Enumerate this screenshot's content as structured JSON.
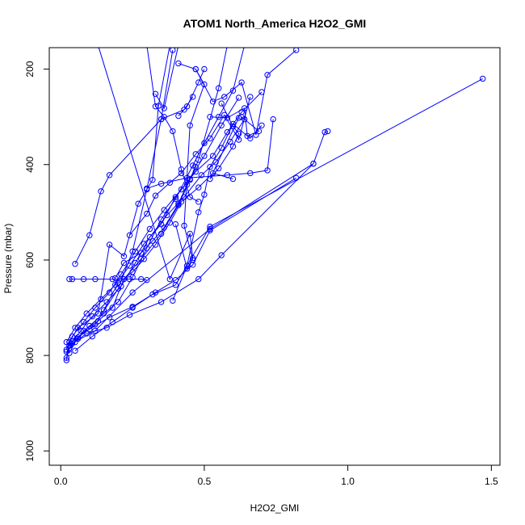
{
  "chart_data": {
    "type": "line",
    "title": "ATOM1 North_America H2O2_GMI",
    "xlabel": "H2O2_GMI",
    "ylabel": "Pressure (mbar)",
    "xlim": [
      -0.04,
      1.53
    ],
    "ylim": [
      1030,
      155
    ],
    "y_reversed": true,
    "grid": false,
    "legend": "none",
    "color": "#0000ff",
    "x_ticks": [
      0.0,
      0.5,
      1.0,
      1.5
    ],
    "x_tick_labels": [
      "0.0",
      "0.5",
      "1.0",
      "1.5"
    ],
    "y_ticks": [
      200,
      400,
      600,
      800,
      1000
    ],
    "y_tick_labels": [
      "200",
      "400",
      "600",
      "800",
      "1000"
    ],
    "series": [
      {
        "values": [
          [
            0.02,
            810
          ],
          [
            0.03,
            772
          ],
          [
            0.06,
            742
          ],
          [
            0.13,
            712
          ],
          [
            0.17,
            568
          ],
          [
            0.22,
            592
          ],
          [
            0.27,
            482
          ],
          [
            0.32,
            432
          ],
          [
            0.34,
            277
          ],
          [
            0.38,
            150
          ]
        ]
      },
      {
        "values": [
          [
            0.02,
            805
          ],
          [
            0.03,
            785
          ],
          [
            0.06,
            762
          ],
          [
            0.12,
            735
          ],
          [
            0.2,
            660
          ],
          [
            0.25,
            582
          ],
          [
            0.3,
            452
          ],
          [
            0.35,
            305
          ],
          [
            0.39,
            160
          ]
        ]
      },
      {
        "values": [
          [
            0.03,
            795
          ],
          [
            0.05,
            772
          ],
          [
            0.08,
            748
          ],
          [
            0.13,
            728
          ],
          [
            0.18,
            700
          ],
          [
            0.22,
            640
          ],
          [
            0.28,
            598
          ],
          [
            0.35,
            545
          ],
          [
            0.41,
            485
          ],
          [
            0.45,
            432
          ],
          [
            0.48,
            390
          ],
          [
            0.55,
            240
          ],
          [
            0.58,
            150
          ]
        ]
      },
      {
        "values": [
          [
            0.02,
            792
          ],
          [
            0.06,
            765
          ],
          [
            0.1,
            738
          ],
          [
            0.15,
            712
          ],
          [
            0.2,
            688
          ],
          [
            0.25,
            636
          ],
          [
            0.3,
            575
          ],
          [
            0.35,
            515
          ],
          [
            0.4,
            472
          ],
          [
            0.46,
            402
          ],
          [
            0.5,
            355
          ],
          [
            0.55,
            300
          ],
          [
            0.6,
            245
          ],
          [
            0.64,
            150
          ]
        ]
      },
      {
        "values": [
          [
            0.02,
            788
          ],
          [
            0.04,
            760
          ],
          [
            0.08,
            730
          ],
          [
            0.12,
            700
          ],
          [
            0.17,
            668
          ],
          [
            0.21,
            630
          ],
          [
            0.26,
            582
          ],
          [
            0.31,
            535
          ],
          [
            0.36,
            495
          ],
          [
            0.42,
            452
          ],
          [
            0.47,
            415
          ],
          [
            0.53,
            382
          ],
          [
            0.58,
            332
          ],
          [
            0.63,
            290
          ],
          [
            0.7,
            248
          ]
        ]
      },
      {
        "values": [
          [
            0.03,
            778
          ],
          [
            0.07,
            748
          ],
          [
            0.11,
            718
          ],
          [
            0.16,
            688
          ],
          [
            0.21,
            655
          ],
          [
            0.26,
            606
          ],
          [
            0.31,
            552
          ],
          [
            0.37,
            506
          ],
          [
            0.43,
            468
          ],
          [
            0.49,
            422
          ],
          [
            0.54,
            395
          ],
          [
            0.59,
            352
          ],
          [
            0.64,
            305
          ]
        ]
      },
      {
        "values": [
          [
            0.02,
            772
          ],
          [
            0.05,
            742
          ],
          [
            0.09,
            712
          ],
          [
            0.14,
            682
          ],
          [
            0.19,
            652
          ],
          [
            0.24,
            612
          ],
          [
            0.29,
            566
          ],
          [
            0.35,
            525
          ],
          [
            0.4,
            468
          ],
          [
            0.45,
            430
          ],
          [
            0.5,
            382
          ],
          [
            0.56,
            318
          ],
          [
            0.62,
            260
          ]
        ]
      },
      {
        "values": [
          [
            0.05,
            790
          ],
          [
            0.11,
            760
          ],
          [
            0.18,
            730
          ],
          [
            0.25,
            700
          ],
          [
            0.33,
            668
          ],
          [
            0.4,
            642
          ],
          [
            0.46,
            610
          ],
          [
            0.52,
            538
          ],
          [
            0.82,
            428
          ]
        ]
      },
      {
        "values": [
          [
            0.03,
            780
          ],
          [
            0.09,
            754
          ],
          [
            0.16,
            742
          ],
          [
            0.24,
            715
          ],
          [
            0.35,
            688
          ],
          [
            0.48,
            640
          ],
          [
            0.56,
            590
          ],
          [
            0.88,
            398
          ]
        ]
      },
      {
        "values": [
          [
            0.04,
            770
          ],
          [
            0.1,
            745
          ],
          [
            0.17,
            720
          ],
          [
            0.25,
            698
          ],
          [
            0.32,
            672
          ],
          [
            0.4,
            652
          ],
          [
            0.52,
            530
          ],
          [
            1.47,
            220
          ]
        ]
      },
      {
        "values": [
          [
            0.04,
            640
          ],
          [
            0.03,
            640
          ],
          [
            0.08,
            640
          ],
          [
            0.12,
            640
          ],
          [
            0.18,
            640
          ],
          [
            0.24,
            640
          ],
          [
            0.28,
            640
          ],
          [
            0.3,
            642
          ]
        ]
      },
      {
        "values": [
          [
            0.05,
            608
          ],
          [
            0.1,
            548
          ],
          [
            0.14,
            456
          ],
          [
            0.17,
            422
          ],
          [
            0.35,
            305
          ],
          [
            0.43,
            285
          ],
          [
            0.46,
            258
          ]
        ]
      },
      {
        "values": [
          [
            0.13,
            150
          ],
          [
            0.38,
            640
          ],
          [
            0.45,
            545
          ],
          [
            0.46,
            596
          ],
          [
            0.44,
            618
          ],
          [
            0.4,
            525
          ]
        ]
      },
      {
        "values": [
          [
            0.47,
            200
          ],
          [
            0.5,
            232
          ],
          [
            0.45,
            318
          ],
          [
            0.43,
            528
          ],
          [
            0.46,
            600
          ]
        ]
      },
      {
        "values": [
          [
            0.41,
            188
          ],
          [
            0.47,
            200
          ],
          [
            0.53,
            268
          ],
          [
            0.57,
            258
          ],
          [
            0.63,
            228
          ],
          [
            0.68,
            338
          ],
          [
            0.72,
            212
          ],
          [
            0.82,
            160
          ]
        ]
      },
      {
        "values": [
          [
            0.56,
            272
          ],
          [
            0.6,
            320
          ],
          [
            0.62,
            335
          ],
          [
            0.6,
            362
          ],
          [
            0.55,
            408
          ],
          [
            0.52,
            430
          ],
          [
            0.62,
            302
          ]
        ]
      },
      {
        "values": [
          [
            0.3,
            450
          ],
          [
            0.35,
            440
          ],
          [
            0.44,
            428
          ],
          [
            0.58,
            422
          ],
          [
            0.66,
            418
          ],
          [
            0.72,
            412
          ],
          [
            0.74,
            305
          ]
        ]
      },
      {
        "values": [
          [
            0.24,
            548
          ],
          [
            0.3,
            503
          ],
          [
            0.33,
            465
          ],
          [
            0.38,
            438
          ],
          [
            0.42,
            418
          ],
          [
            0.47,
            378
          ],
          [
            0.52,
            345
          ],
          [
            0.57,
            296
          ],
          [
            0.62,
            348
          ],
          [
            0.66,
            258
          ]
        ]
      },
      {
        "values": [
          [
            0.19,
            638
          ],
          [
            0.22,
            606
          ],
          [
            0.28,
            585
          ],
          [
            0.32,
            560
          ],
          [
            0.36,
            532
          ],
          [
            0.41,
            482
          ],
          [
            0.44,
            442
          ],
          [
            0.47,
            405
          ]
        ]
      },
      {
        "values": [
          [
            0.15,
            705
          ],
          [
            0.2,
            648
          ],
          [
            0.25,
            625
          ],
          [
            0.29,
            598
          ],
          [
            0.33,
            568
          ],
          [
            0.38,
            522
          ],
          [
            0.42,
            478
          ],
          [
            0.48,
            448
          ],
          [
            0.53,
            418
          ],
          [
            0.6,
            430
          ]
        ]
      },
      {
        "values": [
          [
            0.52,
            300
          ],
          [
            0.58,
            302
          ],
          [
            0.64,
            282
          ],
          [
            0.65,
            340
          ],
          [
            0.69,
            330
          ],
          [
            0.63,
            300
          ]
        ]
      },
      {
        "values": [
          [
            0.33,
            252
          ],
          [
            0.36,
            282
          ],
          [
            0.41,
            150
          ]
        ]
      },
      {
        "values": [
          [
            0.3,
            150
          ],
          [
            0.33,
            278
          ],
          [
            0.36,
            300
          ],
          [
            0.39,
            330
          ],
          [
            0.42,
            410
          ],
          [
            0.45,
            468
          ],
          [
            0.48,
            478
          ]
        ]
      },
      {
        "values": [
          [
            0.39,
            685
          ],
          [
            0.44,
            612
          ],
          [
            0.48,
            500
          ],
          [
            0.5,
            463
          ],
          [
            0.52,
            405
          ],
          [
            0.56,
            365
          ],
          [
            0.6,
            315
          ],
          [
            0.66,
            345
          ],
          [
            0.7,
            318
          ]
        ]
      },
      {
        "values": [
          [
            0.5,
            200
          ],
          [
            0.48,
            228
          ],
          [
            0.44,
            278
          ],
          [
            0.41,
            298
          ]
        ]
      },
      {
        "values": [
          [
            0.93,
            330
          ],
          [
            0.92,
            332
          ],
          [
            0.88,
            398
          ],
          [
            0.52,
            535
          ],
          [
            0.25,
            668
          ],
          [
            0.12,
            748
          ],
          [
            0.04,
            775
          ]
        ]
      }
    ]
  }
}
